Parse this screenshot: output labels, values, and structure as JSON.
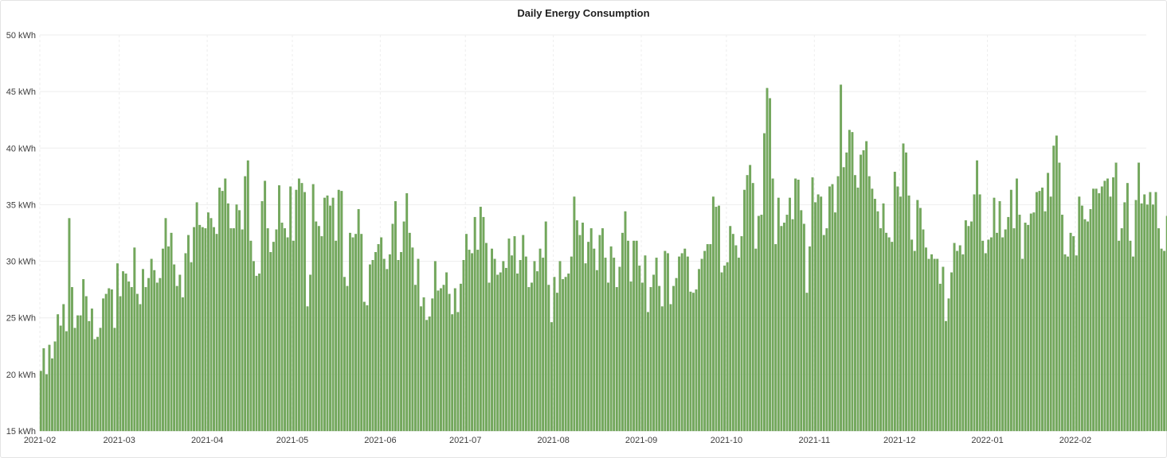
{
  "panel": {
    "title": "Daily Energy Consumption"
  },
  "colors": {
    "bar": "#73a85c",
    "bar_edge": "#5e9449",
    "grid": "#eeeeee",
    "axis_text": "#3d3d3d"
  },
  "chart_data": {
    "type": "bar",
    "title": "Daily Energy Consumption",
    "xlabel": "",
    "ylabel": "",
    "y_unit": "kWh",
    "ylim": [
      15,
      50
    ],
    "y_ticks": [
      15,
      20,
      25,
      30,
      35,
      40,
      45,
      50
    ],
    "y_tick_labels": [
      "15 kWh",
      "20 kWh",
      "25 kWh",
      "30 kWh",
      "35 kWh",
      "40 kWh",
      "45 kWh",
      "50 kWh"
    ],
    "x_range": [
      "2021-02-01",
      "2022-02-25"
    ],
    "x_tick_labels": [
      "2021-02",
      "2021-03",
      "2021-04",
      "2021-05",
      "2021-06",
      "2021-07",
      "2021-08",
      "2021-09",
      "2021-10",
      "2021-11",
      "2021-12",
      "2022-01",
      "2022-02"
    ],
    "grid": true,
    "series": [
      {
        "start_date": "2021-02-01",
        "interval": "1 day",
        "values": [
          20.3,
          22.3,
          20.0,
          22.6,
          21.4,
          22.9,
          25.3,
          24.3,
          26.2,
          23.8,
          33.8,
          27.7,
          24.1,
          25.2,
          25.2,
          28.4,
          26.9,
          24.7,
          25.8,
          23.1,
          23.3,
          24.1,
          26.7,
          27.1,
          27.6,
          27.5,
          24.1,
          29.8,
          26.9,
          29.1,
          28.9,
          28.2,
          27.7,
          31.2,
          27.1,
          26.2,
          29.3,
          27.7,
          28.5,
          30.2,
          29.2,
          28.1,
          28.5,
          31.1,
          33.8,
          31.3,
          32.5,
          29.7,
          27.8,
          28.8,
          26.8,
          30.7,
          32.3,
          29.9,
          33.0,
          35.2,
          33.2,
          33.0,
          32.9,
          34.3,
          33.8,
          33.0,
          32.4,
          36.5,
          36.2,
          37.3,
          35.1,
          32.9,
          32.9,
          35.0,
          34.5,
          32.8,
          37.5,
          38.9,
          31.8,
          30.0,
          28.7,
          28.9,
          35.3,
          37.1,
          32.9,
          30.8,
          31.7,
          32.8,
          36.7,
          33.4,
          32.9,
          32.1,
          36.6,
          31.8,
          36.3,
          37.3,
          36.9,
          36.1,
          26.0,
          28.8,
          36.8,
          33.5,
          33.1,
          32.2,
          35.6,
          35.8,
          34.9,
          35.6,
          31.8,
          36.3,
          36.2,
          28.6,
          27.8,
          32.5,
          32.1,
          32.4,
          34.6,
          32.4,
          26.4,
          26.1,
          29.7,
          30.1,
          30.8,
          31.5,
          32.1,
          30.2,
          29.3,
          30.6,
          33.3,
          35.3,
          30.1,
          30.8,
          33.5,
          36.0,
          32.5,
          31.2,
          27.9,
          30.2,
          26.0,
          26.8,
          24.8,
          25.1,
          26.7,
          30.0,
          27.4,
          27.6,
          27.9,
          29.0,
          27.1,
          25.3,
          27.6,
          25.5,
          28.0,
          30.1,
          32.4,
          31.0,
          30.7,
          33.9,
          31.0,
          34.8,
          33.9,
          31.6,
          28.1,
          31.1,
          30.2,
          28.8,
          29.0,
          30.0,
          29.4,
          32.0,
          30.5,
          32.2,
          28.9,
          30.1,
          32.3,
          30.4,
          27.7,
          28.1,
          30.0,
          29.1,
          31.1,
          30.3,
          33.5,
          27.9,
          24.6,
          28.6,
          27.2,
          30.0,
          28.4,
          28.6,
          28.9,
          30.4,
          35.7,
          33.6,
          32.3,
          33.4,
          29.8,
          31.7,
          32.9,
          31.1,
          29.2,
          32.3,
          32.9,
          30.3,
          28.1,
          31.3,
          30.3,
          27.7,
          29.5,
          32.5,
          34.4,
          31.8,
          28.2,
          31.8,
          31.8,
          29.6,
          28.1,
          30.5,
          25.5,
          27.7,
          28.8,
          30.3,
          27.8,
          26.0,
          30.9,
          30.7,
          26.2,
          27.8,
          28.5,
          30.4,
          30.7,
          31.1,
          30.4,
          27.3,
          27.2,
          27.5,
          29.3,
          30.2,
          30.9,
          31.5,
          31.5,
          35.7,
          34.8,
          34.9,
          29.0,
          29.6,
          29.9,
          33.1,
          32.4,
          31.4,
          30.3,
          32.2,
          36.3,
          37.6,
          38.5,
          36.9,
          31.1,
          34.0,
          34.1,
          41.3,
          45.3,
          44.4,
          37.3,
          31.5,
          35.6,
          33.1,
          33.4,
          34.1,
          35.6,
          33.7,
          37.3,
          37.2,
          34.5,
          33.3,
          27.2,
          31.3,
          37.4,
          35.2,
          35.9,
          35.7,
          32.3,
          32.9,
          36.6,
          36.8,
          34.3,
          37.5,
          45.6,
          38.3,
          39.6,
          41.6,
          41.4,
          37.6,
          36.5,
          39.4,
          39.8,
          40.6,
          37.5,
          36.4,
          35.5,
          34.4,
          32.9,
          35.1,
          32.5,
          32.1,
          31.7,
          37.9,
          36.6,
          35.7,
          40.4,
          39.6,
          35.8,
          31.9,
          30.9,
          35.4,
          34.7,
          32.8,
          31.2,
          30.2,
          30.6,
          30.2,
          30.2,
          28.0,
          29.5,
          24.7,
          26.7,
          29.0,
          31.6,
          30.9,
          31.4,
          30.6,
          33.6,
          33.1,
          33.5,
          35.9,
          38.9,
          35.9,
          31.8,
          30.7,
          31.9,
          32.1,
          35.6,
          32.5,
          35.3,
          32.1,
          32.8,
          33.9,
          36.3,
          32.9,
          37.3,
          34.1,
          30.2,
          33.4,
          33.2,
          34.2,
          34.3,
          36.1,
          36.2,
          36.5,
          34.4,
          37.8,
          35.7,
          40.2,
          41.1,
          38.7,
          34.1,
          30.6,
          30.4,
          32.5,
          32.2,
          30.5,
          35.7,
          34.9,
          33.7,
          33.5,
          34.6,
          36.4,
          36.4,
          36.0,
          36.6,
          37.1,
          37.3,
          35.7,
          37.4,
          38.7,
          31.8,
          32.9,
          35.2,
          36.9,
          31.8,
          30.4,
          35.4,
          38.7,
          35.1,
          35.9,
          35.0,
          36.1,
          35.0,
          36.1,
          32.9,
          31.1,
          30.9,
          34.0,
          34.5,
          35.2,
          32.5,
          32.2,
          28.8,
          27.4,
          27.7
        ]
      }
    ]
  }
}
